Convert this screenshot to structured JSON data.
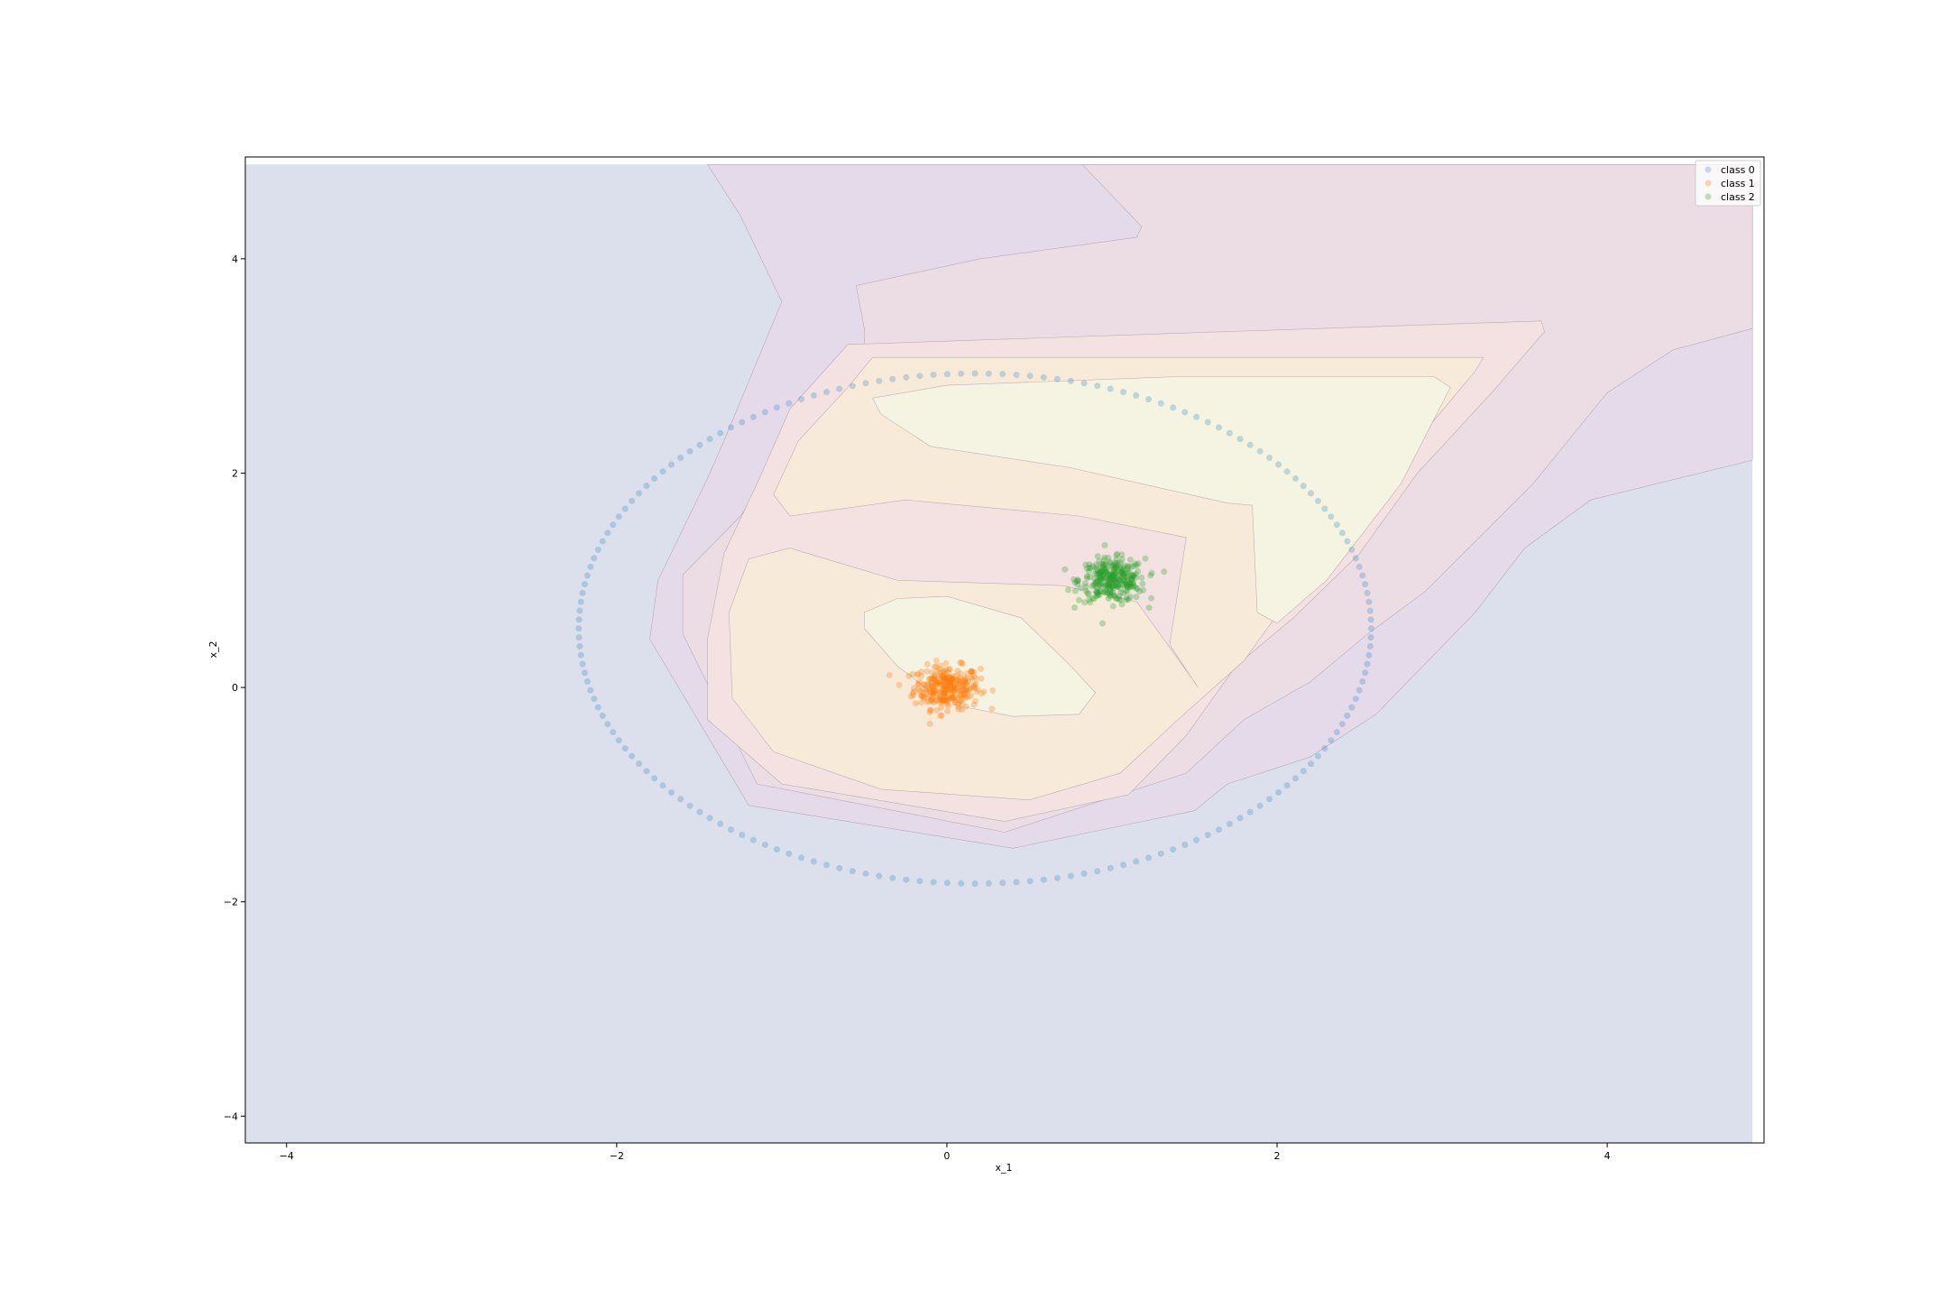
{
  "chart_data": {
    "type": "scatter",
    "title": "",
    "xlabel": "x_1",
    "ylabel": "x_2",
    "xlim": [
      -4.25,
      4.95
    ],
    "ylim": [
      -4.25,
      4.95
    ],
    "x_ticks": [
      -4,
      -2,
      0,
      2,
      4
    ],
    "y_ticks": [
      -4,
      -2,
      0,
      2,
      4
    ],
    "x_tick_labels": [
      "−4",
      "−2",
      "0",
      "2",
      "4"
    ],
    "y_tick_labels": [
      "−4",
      "−2",
      "0",
      "2",
      "4"
    ],
    "grid": false,
    "legend_position": "upper right",
    "contour": {
      "levels": [
        {
          "color": "#dbe0ec",
          "alpha": 1.0,
          "polygon": [
            [
              -4.25,
              4.88
            ],
            [
              4.88,
              4.88
            ],
            [
              4.88,
              -4.25
            ],
            [
              -4.25,
              -4.25
            ]
          ]
        },
        {
          "color": "#e5daea",
          "alpha": 1.0,
          "polygon": [
            [
              -1.45,
              4.88
            ],
            [
              4.88,
              4.88
            ],
            [
              4.88,
              2.12
            ],
            [
              3.9,
              1.75
            ],
            [
              3.5,
              1.3
            ],
            [
              3.2,
              0.7
            ],
            [
              2.6,
              -0.25
            ],
            [
              2.2,
              -0.65
            ],
            [
              1.7,
              -0.9
            ],
            [
              1.5,
              -1.15
            ],
            [
              0.4,
              -1.5
            ],
            [
              -1.2,
              -1.1
            ],
            [
              -1.8,
              0.45
            ],
            [
              -1.75,
              1.0
            ],
            [
              -1.45,
              1.95
            ],
            [
              -1.35,
              2.3
            ],
            [
              -1.0,
              3.6
            ],
            [
              -1.25,
              4.4
            ]
          ]
        },
        {
          "color": "#ecdde4",
          "alpha": 1.0,
          "polygon": [
            [
              0.82,
              4.88
            ],
            [
              4.88,
              4.88
            ],
            [
              4.88,
              3.35
            ],
            [
              4.4,
              3.15
            ],
            [
              4.0,
              2.75
            ],
            [
              3.55,
              1.9
            ],
            [
              2.9,
              0.9
            ],
            [
              2.55,
              0.5
            ],
            [
              2.2,
              0.05
            ],
            [
              1.8,
              -0.3
            ],
            [
              1.45,
              -0.8
            ],
            [
              0.35,
              -1.35
            ],
            [
              -1.15,
              -0.9
            ],
            [
              -1.6,
              0.5
            ],
            [
              -1.6,
              1.05
            ],
            [
              -1.25,
              1.6
            ],
            [
              -1.05,
              2.05
            ],
            [
              -0.5,
              3.1
            ],
            [
              -0.5,
              3.35
            ],
            [
              -0.55,
              3.75
            ],
            [
              0.2,
              4.0
            ],
            [
              1.15,
              4.2
            ],
            [
              1.18,
              4.3
            ]
          ]
        },
        {
          "color": "#f3e2e1",
          "alpha": 1.0,
          "polygon": [
            [
              -0.6,
              3.2
            ],
            [
              3.6,
              3.42
            ],
            [
              3.62,
              3.32
            ],
            [
              3.3,
              2.75
            ],
            [
              2.85,
              2.0
            ],
            [
              2.5,
              1.25
            ],
            [
              2.1,
              0.65
            ],
            [
              1.75,
              0.2
            ],
            [
              1.45,
              -0.45
            ],
            [
              1.1,
              -1.0
            ],
            [
              0.35,
              -1.25
            ],
            [
              -1.0,
              -0.9
            ],
            [
              -1.45,
              -0.3
            ],
            [
              -1.45,
              0.45
            ],
            [
              -1.35,
              1.25
            ],
            [
              -1.15,
              1.9
            ],
            [
              -0.95,
              2.6
            ]
          ]
        },
        {
          "color": "#f7ead9",
          "alpha": 1.0,
          "polygon": [
            [
              -0.45,
              3.08
            ],
            [
              3.25,
              3.08
            ],
            [
              3.2,
              2.95
            ],
            [
              2.9,
              2.4
            ],
            [
              2.55,
              1.8
            ],
            [
              2.15,
              1.0
            ],
            [
              1.8,
              0.25
            ],
            [
              1.4,
              -0.3
            ],
            [
              1.05,
              -0.8
            ],
            [
              0.5,
              -1.05
            ],
            [
              -0.4,
              -0.95
            ],
            [
              -1.05,
              -0.6
            ],
            [
              -1.3,
              -0.1
            ],
            [
              -1.32,
              0.7
            ],
            [
              -1.2,
              1.2
            ],
            [
              -0.95,
              1.3
            ],
            [
              -0.3,
              1.0
            ],
            [
              0.7,
              0.95
            ],
            [
              1.15,
              0.8
            ],
            [
              1.5,
              0.05
            ],
            [
              1.52,
              0.0
            ],
            [
              1.35,
              0.4
            ],
            [
              1.45,
              1.4
            ],
            [
              0.8,
              1.6
            ],
            [
              -0.25,
              1.75
            ],
            [
              -0.95,
              1.6
            ],
            [
              -1.05,
              1.8
            ],
            [
              -0.9,
              2.3
            ],
            [
              -0.6,
              2.8
            ]
          ]
        },
        {
          "color": "#f5f3e1",
          "alpha": 1.0,
          "polygon": [
            [
              -0.45,
              2.7
            ],
            [
              -0.4,
              2.55
            ],
            [
              -0.1,
              2.25
            ],
            [
              0.75,
              2.05
            ],
            [
              1.7,
              1.72
            ],
            [
              1.85,
              1.7
            ],
            [
              1.88,
              0.7
            ],
            [
              2.0,
              0.6
            ],
            [
              2.3,
              1.0
            ],
            [
              2.75,
              1.9
            ],
            [
              3.05,
              2.8
            ],
            [
              2.95,
              2.9
            ],
            [
              1.4,
              2.9
            ],
            [
              0.0,
              2.82
            ]
          ]
        },
        {
          "color": "#f5f3e1",
          "alpha": 1.0,
          "polygon": [
            [
              -0.5,
              0.7
            ],
            [
              -0.3,
              0.83
            ],
            [
              0.0,
              0.85
            ],
            [
              0.45,
              0.65
            ],
            [
              0.75,
              0.2
            ],
            [
              0.9,
              -0.05
            ],
            [
              0.8,
              -0.25
            ],
            [
              0.4,
              -0.27
            ],
            [
              0.0,
              -0.15
            ],
            [
              -0.3,
              0.2
            ],
            [
              -0.5,
              0.55
            ]
          ]
        }
      ]
    },
    "circle_points": {
      "center_x": 0.17,
      "center_y": 0.55,
      "radius_x": 2.4,
      "radius_y": 2.38,
      "count": 180
    },
    "series": [
      {
        "name": "class 0",
        "color": "#1f77b4",
        "alpha": 0.25,
        "shape": "ring",
        "center": [
          0.17,
          0.55
        ],
        "radius_x": 2.4,
        "radius_y": 2.38,
        "count": 180
      },
      {
        "name": "class 1",
        "color": "#ff7f0e",
        "alpha": 0.3,
        "shape": "cluster",
        "center": [
          0.0,
          0.0
        ],
        "spread": 0.1,
        "count": 300
      },
      {
        "name": "class 2",
        "color": "#2ca02c",
        "alpha": 0.3,
        "shape": "cluster",
        "center": [
          1.0,
          1.0
        ],
        "spread": 0.1,
        "count": 300
      }
    ]
  }
}
